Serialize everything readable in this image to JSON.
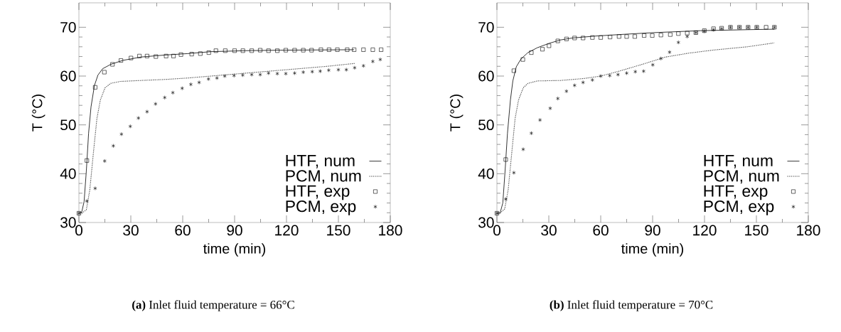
{
  "chart_data": [
    {
      "type": "line",
      "xlabel": "time (min)",
      "ylabel": "T (°C)",
      "xlim": [
        0,
        180
      ],
      "xticks": [
        0,
        30,
        60,
        90,
        120,
        150,
        180
      ],
      "ylim": [
        30,
        75
      ],
      "yticks": [
        30,
        40,
        50,
        60,
        70
      ],
      "legend": "bottom right",
      "annotations": [
        "**(a)** Inlet fluid temperature = 66°C"
      ],
      "series": [
        {
          "name": "HTF, num",
          "type": "line",
          "line_style": "solid",
          "color": "#000000",
          "x": [
            0,
            1.6,
            3.0,
            4.3,
            5.6,
            7.0,
            9.0,
            11.0,
            13.7,
            18.4,
            25.2,
            35.9,
            49.4,
            62.8,
            76.3,
            96.4,
            116.6,
            159.1
          ],
          "values": [
            31.9,
            32.1,
            34.3,
            40.6,
            48.3,
            53.7,
            58.1,
            60.2,
            61.5,
            62.4,
            63.2,
            63.9,
            64.3,
            64.6,
            65.0,
            65.2,
            65.3,
            65.4
          ]
        },
        {
          "name": "PCM, num",
          "type": "line",
          "line_style": "dotted",
          "color": "#444444",
          "x": [
            1.6,
            4.3,
            6.3,
            8.3,
            10.4,
            12.4,
            15.1,
            18.4,
            23.8,
            35.9,
            49.4,
            62.8,
            76.3,
            89.7,
            109.9,
            130.1,
            143.5,
            159.6
          ],
          "values": [
            31.9,
            32.6,
            36.7,
            44.0,
            51.3,
            55.1,
            57.6,
            58.5,
            58.9,
            59.1,
            59.3,
            59.6,
            60.0,
            60.4,
            61.0,
            61.6,
            62.0,
            62.6
          ]
        },
        {
          "name": "HTF, exp",
          "type": "scatter",
          "marker": "square",
          "color": "#000000",
          "x": [
            0,
            4.6,
            9.4,
            14.7,
            19.4,
            24.3,
            30.1,
            35.0,
            39.4,
            44.5,
            50.4,
            54.7,
            59.0,
            65.2,
            70.2,
            75.1,
            79.2,
            84.6,
            90.0,
            94.8,
            99.9,
            104.8,
            109.6,
            114.7,
            119.6,
            124.7,
            129.7,
            134.5,
            139.9,
            144.6,
            149.4,
            155.1,
            159.1,
            164.5,
            169.9,
            174.7
          ],
          "values": [
            31.9,
            42.7,
            57.7,
            60.8,
            62.4,
            63.2,
            63.7,
            64.1,
            64.1,
            64.0,
            64.1,
            64.1,
            64.4,
            64.5,
            64.6,
            64.8,
            65.2,
            65.2,
            65.2,
            65.2,
            65.2,
            65.3,
            65.2,
            65.2,
            65.3,
            65.3,
            65.3,
            65.3,
            65.4,
            65.4,
            65.4,
            65.4,
            65.4,
            65.4,
            65.4,
            65.4
          ]
        },
        {
          "name": "PCM, exp",
          "type": "scatter",
          "marker": "cross",
          "color": "#000000",
          "x": [
            0,
            4.6,
            9.4,
            14.9,
            19.9,
            24.6,
            29.7,
            34.4,
            39.4,
            44.3,
            49.6,
            54.3,
            59.7,
            64.7,
            69.5,
            74.9,
            79.8,
            84.3,
            89.7,
            94.7,
            99.9,
            104.8,
            109.6,
            114.7,
            119.6,
            124.7,
            129.7,
            134.9,
            139.5,
            144.4,
            150.0,
            154.6,
            159.4,
            164.5,
            169.9,
            174.2
          ],
          "values": [
            31.9,
            34.4,
            37.0,
            42.6,
            45.7,
            48.1,
            49.7,
            51.4,
            52.7,
            54.3,
            55.6,
            56.6,
            57.5,
            58.3,
            58.7,
            59.4,
            59.6,
            60.0,
            60.1,
            60.2,
            60.3,
            60.3,
            60.6,
            60.5,
            60.5,
            60.6,
            60.8,
            60.9,
            61.0,
            61.2,
            61.3,
            61.3,
            61.7,
            62.1,
            63.0,
            63.4
          ]
        }
      ]
    },
    {
      "type": "line",
      "xlabel": "time (min)",
      "ylabel": "T (°C)",
      "xlim": [
        0,
        180
      ],
      "xticks": [
        0,
        30,
        60,
        90,
        120,
        150,
        180
      ],
      "ylim": [
        30,
        75
      ],
      "yticks": [
        30,
        40,
        50,
        60,
        70
      ],
      "legend": "bottom right",
      "annotations": [
        "**(b)** Inlet fluid temperature = 70°C"
      ],
      "series": [
        {
          "name": "HTF, num",
          "type": "line",
          "line_style": "solid",
          "color": "#000000",
          "x": [
            0,
            1.8,
            3.4,
            4.7,
            6.1,
            7.8,
            9.2,
            11.2,
            13.9,
            17.9,
            23.3,
            30.1,
            36.8,
            43.6,
            57.1,
            70.6,
            90.8,
            117.8,
            144.8,
            160.4
          ],
          "values": [
            31.9,
            31.9,
            34.0,
            40.5,
            48.3,
            55.1,
            59.0,
            61.9,
            63.5,
            64.8,
            65.8,
            66.7,
            67.4,
            67.8,
            68.2,
            68.5,
            68.9,
            69.3,
            69.5,
            69.6
          ]
        },
        {
          "name": "PCM, num",
          "type": "line",
          "line_style": "dotted",
          "color": "#444444",
          "x": [
            1.8,
            4.5,
            6.5,
            8.5,
            10.5,
            12.5,
            15.2,
            17.9,
            23.3,
            36.8,
            50.3,
            60.0,
            70.6,
            84.0,
            97.5,
            111.0,
            124.5,
            144.8,
            160.4
          ],
          "values": [
            31.9,
            32.8,
            36.7,
            44.0,
            51.3,
            55.1,
            57.6,
            58.5,
            59.0,
            59.1,
            59.5,
            60.0,
            61.0,
            62.4,
            63.9,
            64.7,
            65.3,
            66.0,
            66.8
          ]
        },
        {
          "name": "HTF, exp",
          "type": "scatter",
          "marker": "square",
          "color": "#000000",
          "x": [
            0,
            5.1,
            9.8,
            15.0,
            19.9,
            26.3,
            30.1,
            35.2,
            40.2,
            44.9,
            49.8,
            55.2,
            60.0,
            65.4,
            70.6,
            75.0,
            79.7,
            85.1,
            89.8,
            94.8,
            100.2,
            104.9,
            110.0,
            115.0,
            119.9,
            125.2,
            129.9,
            135.0,
            140.2,
            145.2,
            150.2,
            155.6,
            160.4
          ],
          "values": [
            31.9,
            42.9,
            61.1,
            63.4,
            64.8,
            65.5,
            66.2,
            67.2,
            67.6,
            67.8,
            67.8,
            67.9,
            67.9,
            68.0,
            68.1,
            68.1,
            68.1,
            68.3,
            68.3,
            68.4,
            68.5,
            68.7,
            68.8,
            68.9,
            69.3,
            69.7,
            69.8,
            70.0,
            70.0,
            70.0,
            70.0,
            70.0,
            70.0
          ]
        },
        {
          "name": "PCM, exp",
          "type": "scatter",
          "marker": "cross",
          "color": "#000000",
          "x": [
            0,
            5.1,
            9.8,
            15.2,
            19.9,
            24.9,
            30.8,
            35.2,
            40.2,
            44.9,
            49.8,
            55.2,
            60.0,
            65.2,
            70.0,
            75.0,
            80.0,
            84.8,
            90.1,
            94.8,
            99.8,
            104.9,
            110.0,
            115.0,
            119.9,
            125.2,
            129.9,
            135.0,
            140.2,
            145.2,
            150.2,
            160.4
          ],
          "values": [
            31.9,
            34.8,
            40.2,
            45.0,
            48.3,
            51.0,
            53.4,
            55.4,
            56.9,
            58.1,
            58.7,
            59.2,
            60.0,
            60.1,
            60.3,
            60.6,
            60.9,
            61.0,
            62.3,
            63.6,
            64.9,
            66.9,
            68.1,
            68.9,
            69.2,
            69.5,
            69.7,
            70.0,
            70.0,
            70.0,
            70.0,
            70.0
          ]
        }
      ]
    }
  ]
}
